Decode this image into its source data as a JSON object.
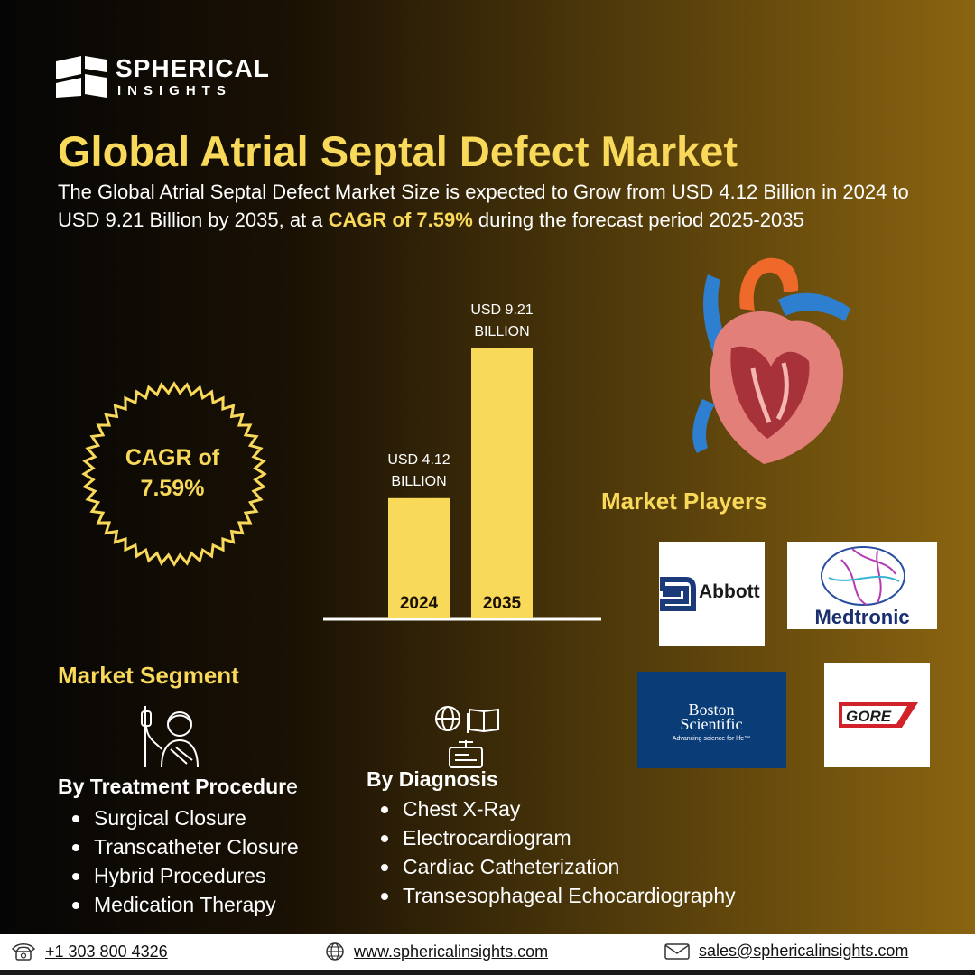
{
  "brand": {
    "name_line1": "SPHERICAL",
    "name_line2": "INSIGHTS"
  },
  "title": "Global Atrial Septal Defect Market",
  "description": {
    "before": "The Global Atrial Septal Defect Market Size is expected to Grow from USD 4.12 Billion in 2024 to USD 9.21 Billion by 2035, at a ",
    "highlight": "CAGR of 7.59%",
    "after": " during the forecast period 2025-2035"
  },
  "cagr_badge": {
    "line1": "CAGR of",
    "line2": "7.59%"
  },
  "chart_data": {
    "type": "bar",
    "categories": [
      "2024",
      "2035"
    ],
    "values": [
      4.12,
      9.21
    ],
    "value_labels": [
      [
        "USD 4.12",
        "BILLION"
      ],
      [
        "USD 9.21",
        "BILLION"
      ]
    ],
    "ylim": [
      0,
      9.21
    ],
    "color": "#f9d95a"
  },
  "market_players": {
    "title": "Market Players",
    "logos": [
      {
        "name": "Abbott"
      },
      {
        "name": "Medtronic"
      },
      {
        "name": "Boston",
        "name2": "Scientific",
        "tagline": "Advancing science for life™"
      },
      {
        "name": "GORE"
      }
    ]
  },
  "market_segment": {
    "title": "Market Segment",
    "treatment": {
      "heading_main": "By Treatment Procedur",
      "heading_last": "e",
      "items": [
        "Surgical Closure",
        "Transcatheter Closure",
        "Hybrid Procedures",
        "Medication Therapy"
      ]
    },
    "diagnosis": {
      "heading": "By Diagnosis",
      "items": [
        "Chest X-Ray",
        "Electrocardiogram",
        "Cardiac Catheterization",
        "Transesophageal Echocardiography"
      ]
    }
  },
  "footer": {
    "phone": "+1 303 800 4326",
    "website": "www.sphericalinsights.com",
    "email": "sales@sphericalinsights.com"
  },
  "colors": {
    "accent": "#f9d95a",
    "boston_blue": "#0a3c78",
    "gore_red": "#d3232a"
  }
}
